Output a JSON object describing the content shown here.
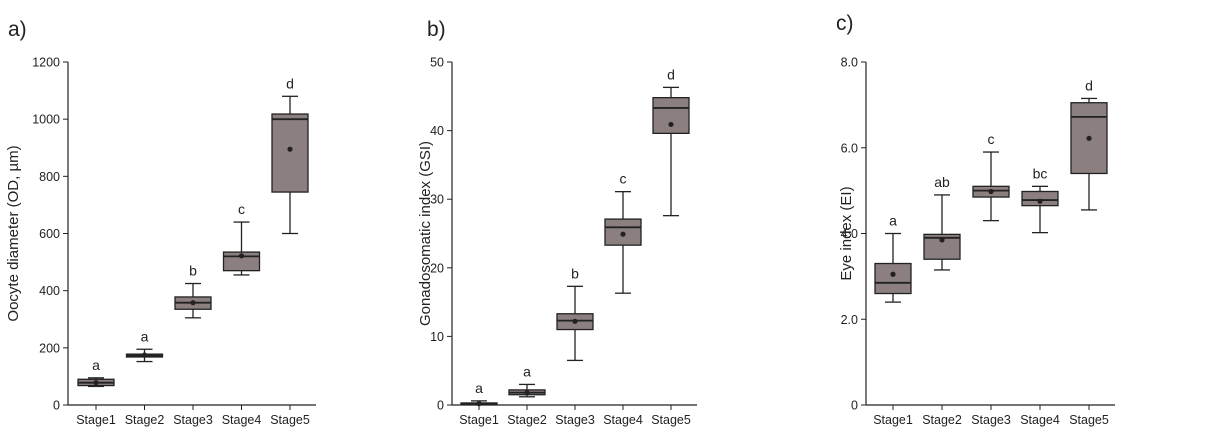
{
  "colors": {
    "box_fill": "#8c7f7f",
    "stroke": "#222222",
    "background": "#ffffff"
  },
  "chart_data": [
    {
      "type": "box",
      "panel_label": "a)",
      "ylabel": "Oocyte diameter (OD, µm)",
      "xlabel": "",
      "ylim": [
        0,
        1200
      ],
      "yticks": [
        "0",
        "200",
        "400",
        "600",
        "800",
        "1000",
        "1200"
      ],
      "ytick_values": [
        0,
        200,
        400,
        600,
        800,
        1000,
        1200
      ],
      "categories": [
        "Stage1",
        "Stage2",
        "Stage3",
        "Stage4",
        "Stage5"
      ],
      "boxes": [
        {
          "min": 65,
          "q1": 68,
          "median": 78,
          "q3": 90,
          "max": 95,
          "mean": 78,
          "letter": "a"
        },
        {
          "min": 152,
          "q1": 168,
          "median": 173,
          "q3": 178,
          "max": 195,
          "mean": 175,
          "letter": "a"
        },
        {
          "min": 305,
          "q1": 335,
          "median": 358,
          "q3": 378,
          "max": 425,
          "mean": 358,
          "letter": "b"
        },
        {
          "min": 455,
          "q1": 470,
          "median": 520,
          "q3": 535,
          "max": 640,
          "mean": 522,
          "letter": "c"
        },
        {
          "min": 600,
          "q1": 745,
          "median": 1000,
          "q3": 1018,
          "max": 1080,
          "mean": 895,
          "letter": "d"
        }
      ]
    },
    {
      "type": "box",
      "panel_label": "b)",
      "ylabel": "Gonadosomatic index (GSI)",
      "xlabel": "",
      "ylim": [
        0,
        50
      ],
      "yticks": [
        "0",
        "10",
        "20",
        "30",
        "40",
        "50"
      ],
      "ytick_values": [
        0,
        10,
        20,
        30,
        40,
        50
      ],
      "categories": [
        "Stage1",
        "Stage2",
        "Stage3",
        "Stage4",
        "Stage5"
      ],
      "boxes": [
        {
          "min": 0.05,
          "q1": 0.1,
          "median": 0.2,
          "q3": 0.3,
          "max": 0.6,
          "mean": 0.2,
          "letter": "a"
        },
        {
          "min": 1.2,
          "q1": 1.5,
          "median": 1.8,
          "q3": 2.2,
          "max": 3.0,
          "mean": 1.8,
          "letter": "a"
        },
        {
          "min": 6.5,
          "q1": 11.0,
          "median": 12.3,
          "q3": 13.3,
          "max": 17.3,
          "mean": 12.2,
          "letter": "b"
        },
        {
          "min": 16.3,
          "q1": 23.3,
          "median": 25.9,
          "q3": 27.1,
          "max": 31.1,
          "mean": 24.9,
          "letter": "c"
        },
        {
          "min": 27.6,
          "q1": 39.6,
          "median": 43.3,
          "q3": 44.8,
          "max": 46.3,
          "mean": 40.9,
          "letter": "d"
        }
      ]
    },
    {
      "type": "box",
      "panel_label": "c)",
      "ylabel": "Eye index (EI)",
      "xlabel": "",
      "ylim": [
        0,
        8
      ],
      "yticks": [
        "0",
        "2.0",
        "4.0",
        "6.0",
        "8.0"
      ],
      "ytick_values": [
        0,
        2,
        4,
        6,
        8
      ],
      "categories": [
        "Stage1",
        "Stage2",
        "Stage3",
        "Stage4",
        "Stage5"
      ],
      "boxes": [
        {
          "min": 2.4,
          "q1": 2.6,
          "median": 2.85,
          "q3": 3.3,
          "max": 4.0,
          "mean": 3.05,
          "letter": "a"
        },
        {
          "min": 3.15,
          "q1": 3.4,
          "median": 3.9,
          "q3": 3.98,
          "max": 4.9,
          "mean": 3.85,
          "letter": "ab"
        },
        {
          "min": 4.3,
          "q1": 4.85,
          "median": 5.0,
          "q3": 5.1,
          "max": 5.9,
          "mean": 4.98,
          "letter": "c"
        },
        {
          "min": 4.02,
          "q1": 4.65,
          "median": 4.78,
          "q3": 4.98,
          "max": 5.1,
          "mean": 4.75,
          "letter": "bc"
        },
        {
          "min": 4.55,
          "q1": 5.4,
          "median": 6.72,
          "q3": 7.05,
          "max": 7.15,
          "mean": 6.22,
          "letter": "d"
        }
      ]
    }
  ]
}
